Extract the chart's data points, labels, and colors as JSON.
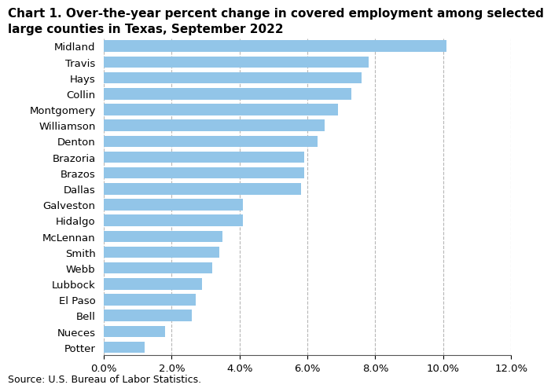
{
  "title_line1": "Chart 1. Over-the-year percent change in covered employment among selected",
  "title_line2": "large counties in Texas, September 2022",
  "counties": [
    "Potter",
    "Nueces",
    "Bell",
    "El Paso",
    "Lubbock",
    "Webb",
    "Smith",
    "McLennan",
    "Hidalgo",
    "Galveston",
    "Dallas",
    "Brazos",
    "Brazoria",
    "Denton",
    "Williamson",
    "Montgomery",
    "Collin",
    "Hays",
    "Travis",
    "Midland"
  ],
  "values": [
    1.2,
    1.8,
    2.6,
    2.7,
    2.9,
    3.2,
    3.4,
    3.5,
    4.1,
    4.1,
    5.8,
    5.9,
    5.9,
    6.3,
    6.5,
    6.9,
    7.3,
    7.6,
    7.8,
    10.1
  ],
  "bar_color": "#92c5e8",
  "grid_color": "#b0b0b0",
  "xlim": [
    0.0,
    12.0
  ],
  "xtick_values": [
    0.0,
    2.0,
    4.0,
    6.0,
    8.0,
    10.0,
    12.0
  ],
  "source_text": "Source: U.S. Bureau of Labor Statistics.",
  "title_fontsize": 11,
  "label_fontsize": 9.5,
  "tick_fontsize": 9.5,
  "source_fontsize": 9,
  "bar_height": 0.72
}
